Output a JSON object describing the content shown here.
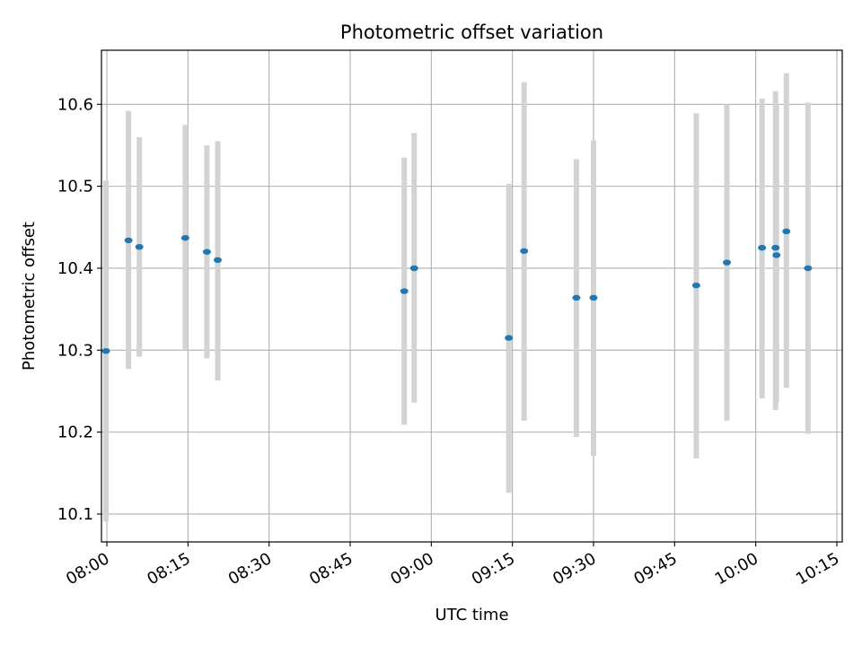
{
  "chart_data": {
    "type": "scatter",
    "title": "Photometric offset variation",
    "xlabel": "UTC time",
    "ylabel": "Photometric offset",
    "x_ticks": [
      "08:00",
      "08:15",
      "08:30",
      "08:45",
      "09:00",
      "09:15",
      "09:30",
      "09:45",
      "10:00",
      "10:15"
    ],
    "y_ticks": [
      "10.1",
      "10.2",
      "10.3",
      "10.4",
      "10.5",
      "10.6"
    ],
    "xlim": [
      "07:59:00",
      "10:16:00"
    ],
    "ylim": [
      10.066,
      10.666
    ],
    "grid": true,
    "marker_color": "#1f77b4",
    "errorbar_color": "#d3d3d3",
    "points": [
      {
        "time": "07:59:50",
        "y": 10.299,
        "low": 10.091,
        "high": 10.507
      },
      {
        "time": "08:04:00",
        "y": 10.434,
        "low": 10.277,
        "high": 10.592
      },
      {
        "time": "08:06:00",
        "y": 10.426,
        "low": 10.292,
        "high": 10.56
      },
      {
        "time": "08:14:30",
        "y": 10.437,
        "low": 10.3,
        "high": 10.575
      },
      {
        "time": "08:18:30",
        "y": 10.42,
        "low": 10.29,
        "high": 10.55
      },
      {
        "time": "08:20:30",
        "y": 10.41,
        "low": 10.263,
        "high": 10.555
      },
      {
        "time": "08:55:00",
        "y": 10.372,
        "low": 10.209,
        "high": 10.535
      },
      {
        "time": "08:56:50",
        "y": 10.4,
        "low": 10.236,
        "high": 10.565
      },
      {
        "time": "09:14:20",
        "y": 10.315,
        "low": 10.126,
        "high": 10.503
      },
      {
        "time": "09:17:10",
        "y": 10.421,
        "low": 10.214,
        "high": 10.627
      },
      {
        "time": "09:26:50",
        "y": 10.364,
        "low": 10.194,
        "high": 10.533
      },
      {
        "time": "09:30:00",
        "y": 10.364,
        "low": 10.171,
        "high": 10.556
      },
      {
        "time": "09:49:00",
        "y": 10.379,
        "low": 10.168,
        "high": 10.589
      },
      {
        "time": "09:54:40",
        "y": 10.407,
        "low": 10.214,
        "high": 10.6
      },
      {
        "time": "10:01:10",
        "y": 10.425,
        "low": 10.241,
        "high": 10.607
      },
      {
        "time": "10:03:40",
        "y": 10.425,
        "low": 10.227,
        "high": 10.616
      },
      {
        "time": "10:03:50",
        "y": 10.416,
        "low": 10.236,
        "high": 10.6
      },
      {
        "time": "10:05:40",
        "y": 10.445,
        "low": 10.254,
        "high": 10.638
      },
      {
        "time": "10:09:40",
        "y": 10.4,
        "low": 10.198,
        "high": 10.602
      }
    ]
  }
}
